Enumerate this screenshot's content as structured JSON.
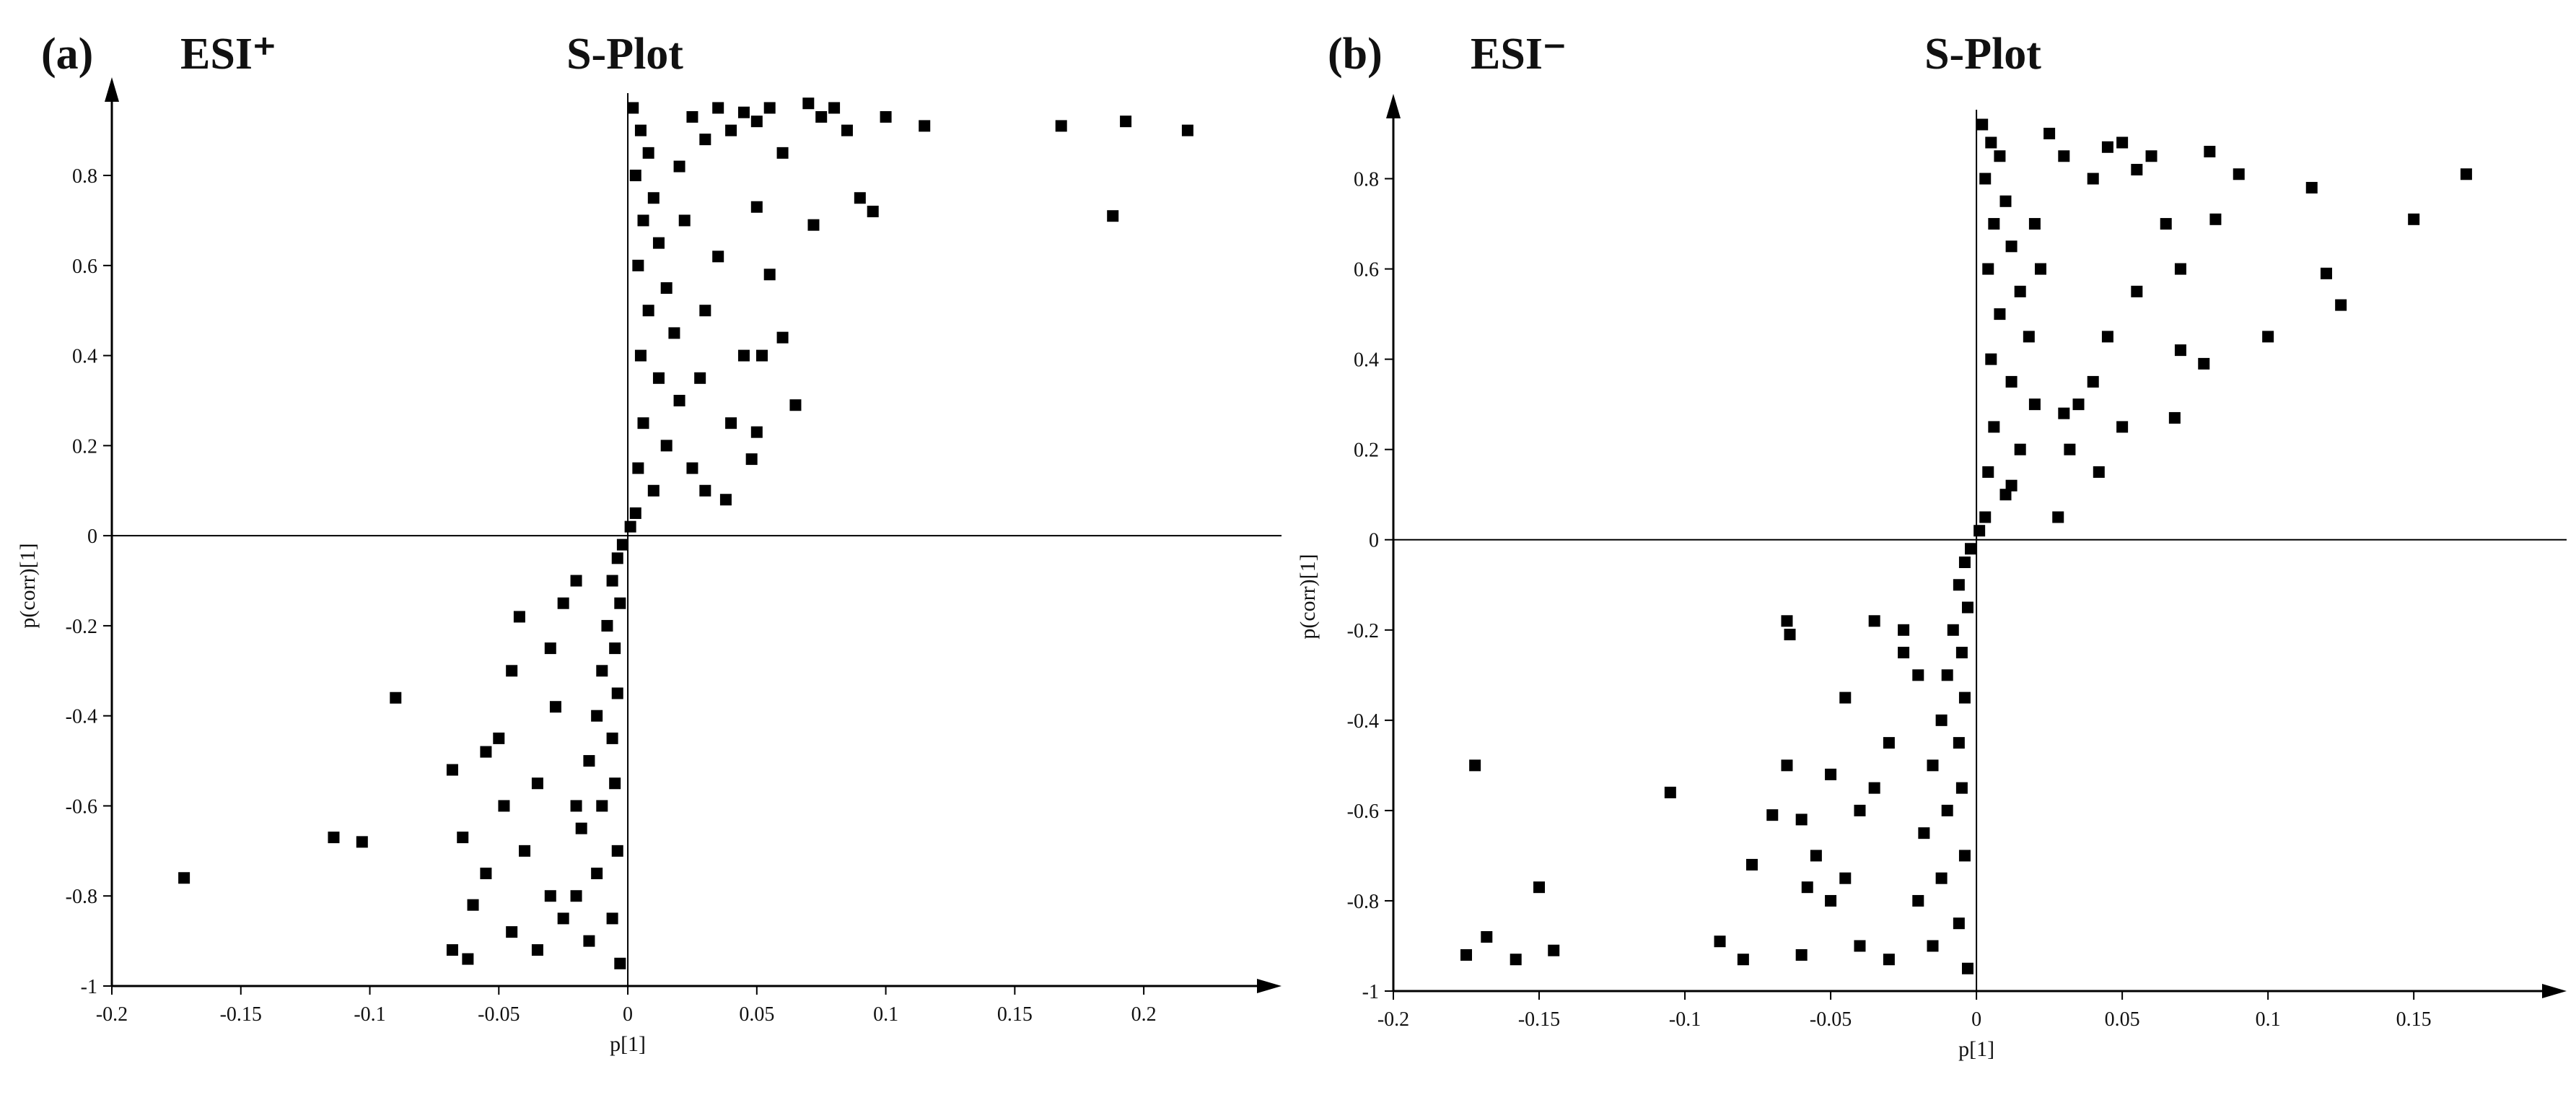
{
  "chart_data": [
    {
      "type": "scatter",
      "panel_label": "(a)",
      "ion_mode": "ESI⁺",
      "title": "S-Plot",
      "x_label": "p[1]",
      "y_label": "p(corr)[1]",
      "color": "#000000",
      "xlim": [
        -0.2,
        0.245
      ],
      "ylim": [
        -1,
        0.97
      ],
      "xticks": [
        -0.2,
        -0.15,
        -0.1,
        -0.05,
        0,
        0.05,
        0.1,
        0.15,
        0.2
      ],
      "yticks": [
        -1,
        -0.8,
        -0.6,
        -0.4,
        -0.2,
        0,
        0.2,
        0.4,
        0.6,
        0.8
      ],
      "x": [
        0.002,
        0.005,
        0.008,
        0.003,
        0.01,
        0.006,
        0.012,
        0.004,
        0.015,
        0.008,
        0.018,
        0.005,
        0.012,
        0.02,
        0.006,
        0.015,
        0.004,
        0.01,
        0.003,
        0.001,
        0.025,
        0.03,
        0.035,
        0.04,
        0.045,
        0.05,
        0.055,
        0.06,
        0.07,
        0.075,
        0.08,
        0.085,
        0.1,
        0.115,
        0.168,
        0.193,
        0.217,
        0.188,
        0.095,
        0.09,
        0.072,
        0.05,
        0.055,
        0.035,
        0.03,
        0.045,
        0.052,
        0.06,
        0.065,
        0.04,
        0.05,
        0.048,
        0.038,
        0.03,
        0.025,
        0.028,
        0.022,
        0.02,
        -0.002,
        -0.004,
        -0.006,
        -0.003,
        -0.008,
        -0.005,
        -0.01,
        -0.004,
        -0.012,
        -0.006,
        -0.015,
        -0.005,
        -0.01,
        -0.018,
        -0.004,
        -0.012,
        -0.02,
        -0.006,
        -0.015,
        -0.003,
        -0.02,
        -0.025,
        -0.042,
        -0.03,
        -0.045,
        -0.028,
        -0.05,
        -0.035,
        -0.048,
        -0.04,
        -0.055,
        -0.03,
        -0.06,
        -0.045,
        -0.068,
        -0.062,
        -0.035,
        -0.025,
        -0.068,
        -0.064,
        -0.09,
        -0.114,
        -0.103,
        -0.172,
        -0.055,
        -0.02
      ],
      "y": [
        0.95,
        0.9,
        0.85,
        0.8,
        0.75,
        0.7,
        0.65,
        0.6,
        0.55,
        0.5,
        0.45,
        0.4,
        0.35,
        0.3,
        0.25,
        0.2,
        0.15,
        0.1,
        0.05,
        0.02,
        0.93,
        0.88,
        0.95,
        0.9,
        0.94,
        0.92,
        0.95,
        0.85,
        0.96,
        0.93,
        0.95,
        0.9,
        0.93,
        0.91,
        0.91,
        0.92,
        0.9,
        0.71,
        0.72,
        0.75,
        0.69,
        0.73,
        0.58,
        0.62,
        0.5,
        0.4,
        0.4,
        0.44,
        0.29,
        0.25,
        0.23,
        0.17,
        0.08,
        0.1,
        0.15,
        0.35,
        0.7,
        0.82,
        -0.02,
        -0.05,
        -0.1,
        -0.15,
        -0.2,
        -0.25,
        -0.3,
        -0.35,
        -0.4,
        -0.45,
        -0.5,
        -0.55,
        -0.6,
        -0.65,
        -0.7,
        -0.75,
        -0.8,
        -0.85,
        -0.9,
        -0.95,
        -0.1,
        -0.15,
        -0.18,
        -0.25,
        -0.3,
        -0.38,
        -0.45,
        -0.55,
        -0.6,
        -0.7,
        -0.75,
        -0.8,
        -0.82,
        -0.88,
        -0.92,
        -0.94,
        -0.92,
        -0.85,
        -0.52,
        -0.67,
        -0.36,
        -0.67,
        -0.68,
        -0.76,
        -0.48,
        -0.6
      ]
    },
    {
      "type": "scatter",
      "panel_label": "(b)",
      "ion_mode": "ESI⁻",
      "title": "S-Plot",
      "x_label": "p[1]",
      "y_label": "p(corr)[1]",
      "color": "#000000",
      "xlim": [
        -0.2,
        0.195
      ],
      "ylim": [
        -1,
        0.94
      ],
      "xticks": [
        -0.2,
        -0.15,
        -0.1,
        -0.05,
        0,
        0.05,
        0.1,
        0.15
      ],
      "yticks": [
        -1,
        -0.8,
        -0.6,
        -0.4,
        -0.2,
        0,
        0.2,
        0.4,
        0.6,
        0.8
      ],
      "x": [
        0.002,
        0.005,
        0.008,
        0.003,
        0.01,
        0.006,
        0.012,
        0.004,
        0.015,
        0.008,
        0.018,
        0.005,
        0.012,
        0.02,
        0.006,
        0.015,
        0.004,
        0.01,
        0.003,
        0.001,
        0.025,
        0.03,
        0.04,
        0.045,
        0.05,
        0.055,
        0.06,
        0.065,
        0.07,
        0.08,
        0.082,
        0.09,
        0.115,
        0.15,
        0.168,
        0.12,
        0.125,
        0.1,
        0.078,
        0.07,
        0.068,
        0.055,
        0.05,
        0.045,
        0.04,
        0.035,
        0.03,
        0.028,
        0.032,
        0.042,
        0.022,
        0.02,
        0.012,
        -0.002,
        -0.004,
        -0.006,
        -0.003,
        -0.008,
        -0.005,
        -0.01,
        -0.004,
        -0.012,
        -0.006,
        -0.015,
        -0.005,
        -0.01,
        -0.018,
        -0.004,
        -0.012,
        -0.02,
        -0.006,
        -0.015,
        -0.003,
        -0.02,
        -0.025,
        -0.03,
        -0.035,
        -0.04,
        -0.045,
        -0.05,
        -0.055,
        -0.06,
        -0.065,
        -0.064,
        -0.06,
        -0.07,
        -0.077,
        -0.08,
        -0.088,
        -0.105,
        -0.05,
        -0.04,
        -0.035,
        -0.045,
        -0.025,
        -0.03,
        -0.058,
        -0.172,
        -0.15,
        -0.175,
        -0.168,
        -0.158,
        -0.145,
        -0.065
      ],
      "y": [
        0.92,
        0.88,
        0.85,
        0.8,
        0.75,
        0.7,
        0.65,
        0.6,
        0.55,
        0.5,
        0.45,
        0.4,
        0.35,
        0.3,
        0.25,
        0.2,
        0.15,
        0.1,
        0.05,
        0.02,
        0.9,
        0.85,
        0.8,
        0.87,
        0.88,
        0.82,
        0.85,
        0.7,
        0.6,
        0.86,
        0.71,
        0.81,
        0.78,
        0.71,
        0.81,
        0.59,
        0.52,
        0.45,
        0.39,
        0.42,
        0.27,
        0.55,
        0.25,
        0.45,
        0.35,
        0.3,
        0.28,
        0.05,
        0.2,
        0.15,
        0.6,
        0.7,
        0.12,
        -0.02,
        -0.05,
        -0.1,
        -0.15,
        -0.2,
        -0.25,
        -0.3,
        -0.35,
        -0.4,
        -0.45,
        -0.5,
        -0.55,
        -0.6,
        -0.65,
        -0.7,
        -0.75,
        -0.8,
        -0.85,
        -0.9,
        -0.95,
        -0.3,
        -0.2,
        -0.45,
        -0.18,
        -0.6,
        -0.35,
        -0.52,
        -0.7,
        -0.62,
        -0.18,
        -0.21,
        -0.92,
        -0.61,
        -0.72,
        -0.93,
        -0.89,
        -0.56,
        -0.8,
        -0.9,
        -0.55,
        -0.75,
        -0.25,
        -0.93,
        -0.77,
        -0.5,
        -0.77,
        -0.92,
        -0.88,
        -0.93,
        -0.91,
        -0.5
      ]
    }
  ]
}
